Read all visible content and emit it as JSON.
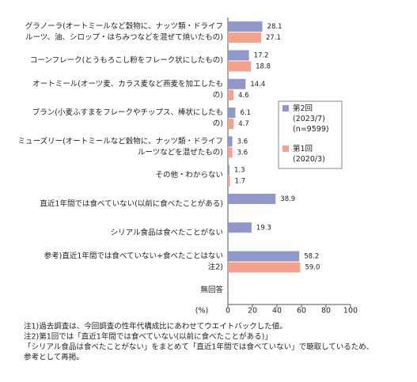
{
  "chart_data": {
    "type": "bar",
    "orientation": "horizontal",
    "categories": [
      "グラノーラ(オートミールなど穀物に、ナッツ類・ドライフ\nルーツ、油、シロップ・はちみつなどを混ぜて焼いたもの)",
      "コーンフレーク(とうもろこし粉をフレーク状にしたもの)",
      "オートミール(オーツ麦、カラス麦など燕麦を加工したも\nの)",
      "ブラン(小麦ふすまをフレークやチップス、棒状にしたも\nの)",
      "ミューズリー(オートミールなど穀物に、ナッツ類・ドライフ\nルーツなどを混ぜたもの)",
      "その他・わからない",
      "直近1年間では食べていない(以前に食べたことがある)",
      "シリアル食品は食べたことがない",
      "参考)直近1年間では食べていない+食べたことはない\n注2)",
      "無回答"
    ],
    "series": [
      {
        "name": "第2回\n(2023/7)\n(n=9599)",
        "color": "#9097c9",
        "values": [
          28.1,
          17.2,
          14.4,
          6.1,
          3.6,
          1.3,
          38.9,
          19.3,
          58.2,
          null
        ],
        "value_labels": [
          "28.1",
          "17.2",
          "14.4",
          "6.1",
          "3.6",
          "1.3",
          "38.9",
          "19.3",
          "58.2",
          null
        ]
      },
      {
        "name": "第1回\n(2020/3)",
        "color": "#f4a28e",
        "values": [
          27.1,
          18.8,
          4.6,
          4.7,
          3.6,
          1.7,
          null,
          null,
          59.0,
          null
        ],
        "value_labels": [
          "27.1",
          "18.8",
          "4.6",
          "4.7",
          "3.6",
          "1.7",
          null,
          null,
          "59.0",
          null
        ]
      }
    ],
    "xlim": [
      0,
      100
    ],
    "xticks": [
      0,
      20,
      40,
      60,
      80,
      100
    ],
    "x_label": "(%)",
    "notes": [
      "注1)過去調査は、今回調査の性年代構成比にあわせてウエイトバックした値。",
      "注2)第1回では「直近1年間では食べていない(以前に食べたことがある)」",
      "「シリアル食品は食べたことがない」をまとめて「直近1年間では食べていない」で聴取しているため、",
      "参考として再掲。"
    ]
  }
}
